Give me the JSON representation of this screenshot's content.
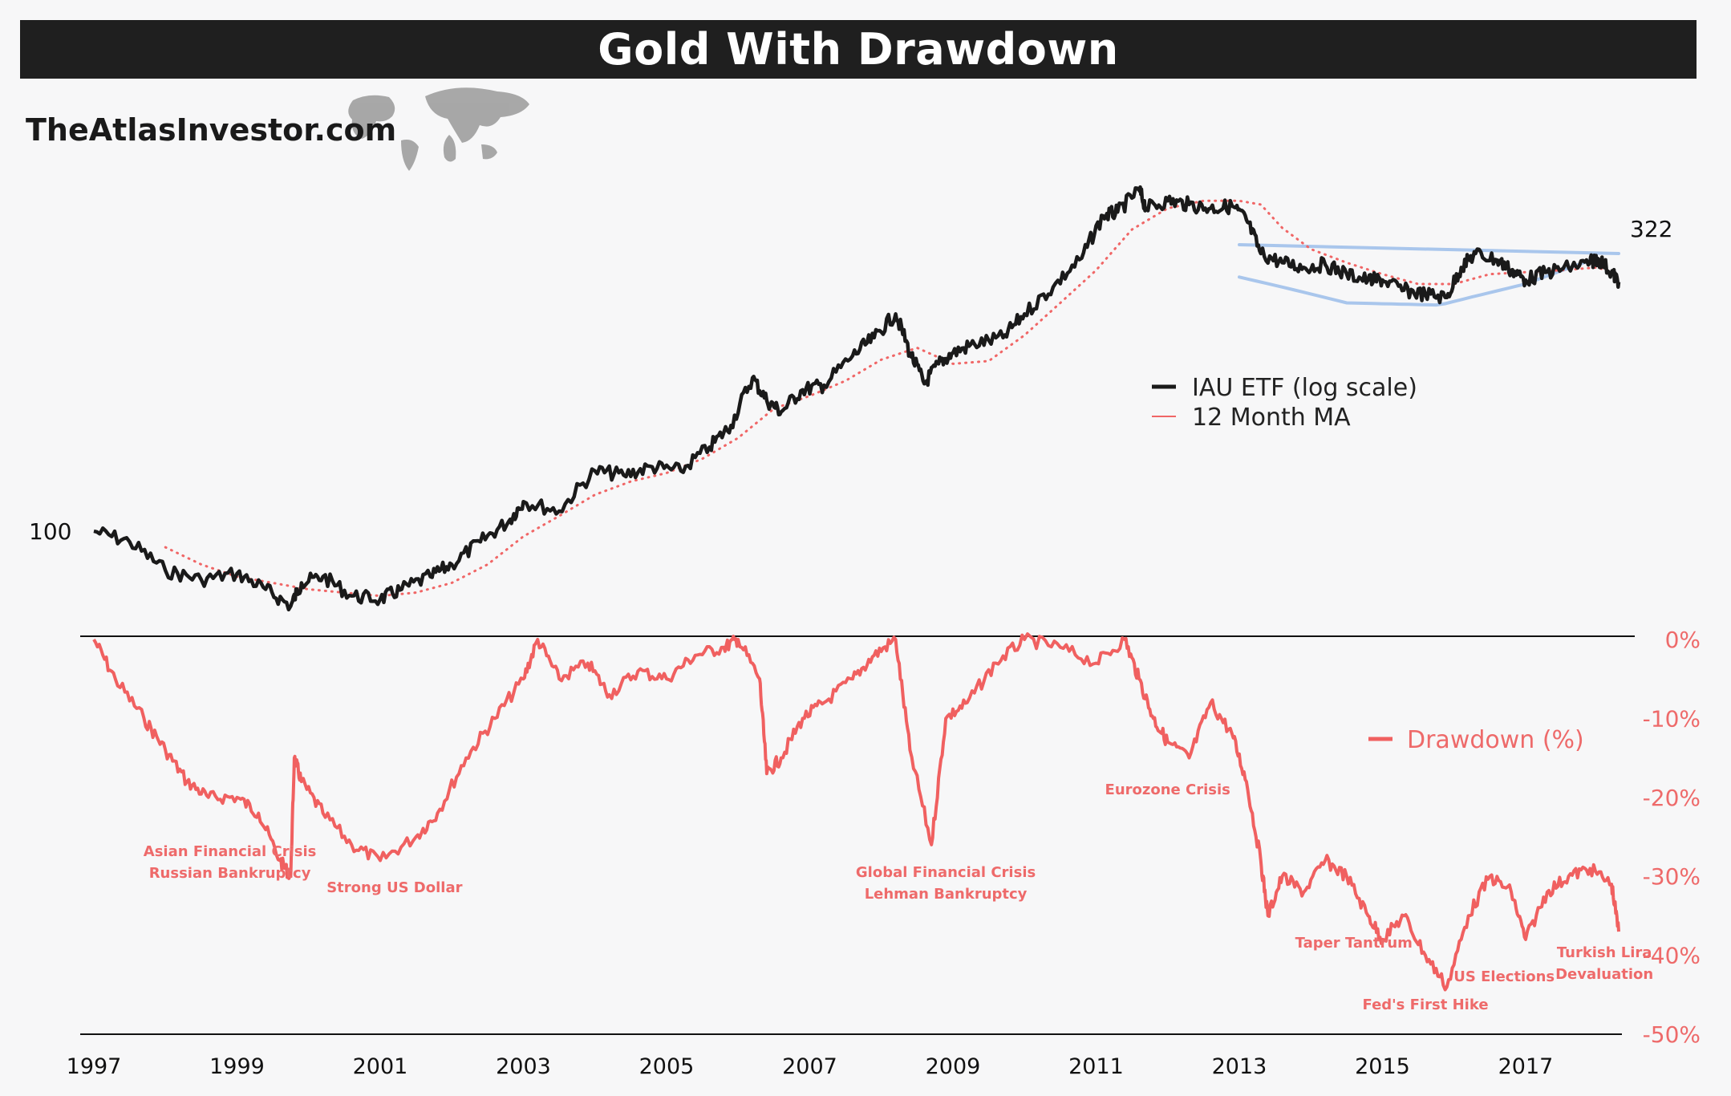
{
  "title": "Gold With Drawdown",
  "brand": "TheAtlasInvestor.com",
  "colors": {
    "price": "#1a1a1a",
    "ma": "#f06666",
    "drawdown": "#f06060",
    "channel": "#a9c6ec"
  },
  "chart_data": {
    "type": "line",
    "x_axis": {
      "ticks": [
        "1997",
        "1999",
        "2001",
        "2003",
        "2005",
        "2007",
        "2009",
        "2011",
        "2013",
        "2015",
        "2017"
      ],
      "range": [
        1997.0,
        2018.3
      ]
    },
    "top_panel": {
      "scale": "log",
      "start_label": "100",
      "end_label": "322",
      "series": [
        {
          "name": "IAU ETF (log scale)",
          "style": "solid",
          "x": [
            1997.0,
            1997.5,
            1998.0,
            1998.5,
            1999.0,
            1999.4,
            1999.75,
            1999.9,
            2000.2,
            2000.6,
            2001.0,
            2001.3,
            2001.7,
            2002.0,
            2002.4,
            2002.8,
            2003.0,
            2003.5,
            2004.0,
            2004.4,
            2004.8,
            2005.2,
            2005.6,
            2005.9,
            2006.2,
            2006.4,
            2006.6,
            2006.9,
            2007.2,
            2007.6,
            2007.9,
            2008.2,
            2008.4,
            2008.6,
            2008.8,
            2009.0,
            2009.3,
            2009.7,
            2010.0,
            2010.4,
            2010.8,
            2011.1,
            2011.3,
            2011.6,
            2011.7,
            2012.0,
            2012.3,
            2012.6,
            2012.9,
            2013.1,
            2013.3,
            2013.6,
            2013.9,
            2014.2,
            2014.5,
            2014.8,
            2015.0,
            2015.3,
            2015.6,
            2015.9,
            2016.1,
            2016.3,
            2016.6,
            2016.8,
            2017.0,
            2017.3,
            2017.6,
            2017.9,
            2018.0,
            2018.2,
            2018.3
          ],
          "y": [
            100,
            96,
            86,
            83,
            85,
            80,
            75,
            82,
            84,
            78,
            77,
            80,
            84,
            88,
            96,
            104,
            112,
            108,
            126,
            124,
            128,
            126,
            138,
            150,
            180,
            165,
            158,
            172,
            175,
            196,
            210,
            230,
            198,
            176,
            190,
            198,
            205,
            210,
            230,
            255,
            285,
            335,
            340,
            370,
            345,
            355,
            350,
            345,
            348,
            330,
            290,
            280,
            275,
            278,
            268,
            262,
            262,
            252,
            248,
            245,
            275,
            290,
            283,
            272,
            262,
            270,
            275,
            280,
            285,
            270,
            260
          ]
        },
        {
          "name": "12 Month MA",
          "style": "dotted",
          "x": [
            1998.0,
            1998.5,
            1999.0,
            1999.5,
            2000.0,
            2000.5,
            2001.0,
            2001.5,
            2002.0,
            2002.5,
            2003.0,
            2003.5,
            2004.0,
            2004.5,
            2005.0,
            2005.5,
            2006.0,
            2006.5,
            2007.0,
            2007.5,
            2008.0,
            2008.5,
            2009.0,
            2009.5,
            2010.0,
            2010.5,
            2011.0,
            2011.5,
            2012.0,
            2012.5,
            2013.0,
            2013.3,
            2013.6,
            2014.0,
            2014.5,
            2015.0,
            2015.5,
            2016.0,
            2016.5,
            2017.0,
            2017.5,
            2018.0,
            2018.3
          ],
          "y": [
            94,
            88,
            84,
            82,
            80,
            79,
            78,
            79,
            82,
            88,
            98,
            106,
            115,
            121,
            125,
            132,
            143,
            160,
            168,
            178,
            193,
            202,
            190,
            192,
            212,
            240,
            272,
            318,
            345,
            355,
            355,
            350,
            320,
            295,
            280,
            268,
            258,
            258,
            268,
            270,
            272,
            275,
            268
          ]
        }
      ],
      "channel": [
        {
          "name": "upper",
          "x": [
            2013.0,
            2018.3
          ],
          "y": [
            300,
            290
          ]
        },
        {
          "name": "lower",
          "x": [
            2013.0,
            2014.5,
            2015.8,
            2017.0,
            2018.0
          ],
          "y": [
            265,
            240,
            238,
            258,
            285
          ]
        }
      ]
    },
    "bottom_panel": {
      "series_name": "Drawdown (%)",
      "ylabel": "",
      "ylim": [
        -50,
        0
      ],
      "yticks": [
        "0%",
        "-10%",
        "-20%",
        "-30%",
        "-40%",
        "-50%"
      ],
      "x": [
        1997.0,
        1997.3,
        1997.7,
        1998.0,
        1998.3,
        1998.6,
        1999.0,
        1999.3,
        1999.6,
        1999.75,
        1999.8,
        1999.9,
        2000.2,
        2000.6,
        2001.0,
        2001.5,
        2001.8,
        2002.2,
        2002.6,
        2003.0,
        2003.2,
        2003.5,
        2003.9,
        2004.2,
        2004.6,
        2005.0,
        2005.4,
        2005.8,
        2006.0,
        2006.3,
        2006.4,
        2006.6,
        2006.9,
        2007.2,
        2007.6,
        2007.9,
        2008.2,
        2008.4,
        2008.7,
        2008.9,
        2009.2,
        2009.6,
        2010.0,
        2010.5,
        2011.0,
        2011.4,
        2011.6,
        2011.8,
        2012.0,
        2012.3,
        2012.6,
        2012.9,
        2013.1,
        2013.3,
        2013.4,
        2013.6,
        2013.9,
        2014.2,
        2014.5,
        2014.8,
        2015.0,
        2015.3,
        2015.6,
        2015.9,
        2016.2,
        2016.5,
        2016.8,
        2017.0,
        2017.3,
        2017.6,
        2017.9,
        2018.2,
        2018.3
      ],
      "values": [
        0,
        -5,
        -10,
        -14,
        -18,
        -20,
        -20,
        -22,
        -28,
        -30,
        -15,
        -18,
        -22,
        -26,
        -28,
        -25,
        -22,
        -15,
        -10,
        -5,
        0,
        -5,
        -3,
        -7,
        -4,
        -5,
        -2,
        -1,
        0,
        -5,
        -17,
        -15,
        -10,
        -8,
        -5,
        -2,
        0,
        -14,
        -26,
        -10,
        -8,
        -3,
        0,
        -1,
        -3,
        0,
        -5,
        -10,
        -13,
        -15,
        -8,
        -12,
        -18,
        -28,
        -35,
        -30,
        -32,
        -28,
        -30,
        -35,
        -38,
        -35,
        -40,
        -44,
        -35,
        -30,
        -32,
        -38,
        -32,
        -30,
        -29,
        -31,
        -37
      ],
      "annotations": [
        {
          "year": 1998.9,
          "lines": [
            "Asian Financial Crisis",
            "Russian Bankruptcy"
          ]
        },
        {
          "year": 2001.2,
          "lines": [
            "Strong US Dollar"
          ]
        },
        {
          "year": 2008.9,
          "lines": [
            "Global Financial Crisis",
            "Lehman Bankruptcy"
          ]
        },
        {
          "year": 2012.0,
          "lines": [
            "Eurozone Crisis"
          ]
        },
        {
          "year": 2014.6,
          "lines": [
            "Taper Tantrum"
          ]
        },
        {
          "year": 2015.6,
          "lines": [
            "Fed's First Hike"
          ]
        },
        {
          "year": 2016.7,
          "lines": [
            "US Elections"
          ]
        },
        {
          "year": 2018.1,
          "lines": [
            "Turkish Lira",
            "Devaluation"
          ]
        }
      ]
    }
  }
}
